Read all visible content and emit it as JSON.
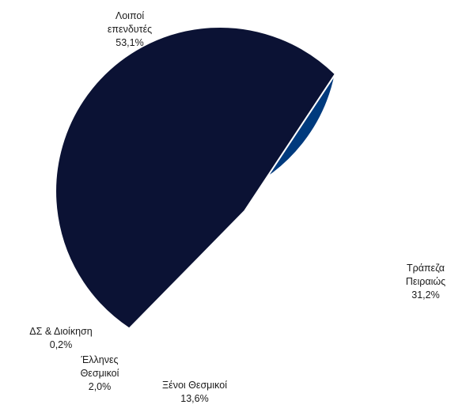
{
  "chart_data": {
    "type": "pie",
    "slices": [
      {
        "label_lines": [
          "Τράπεζα",
          "Πειραιώς"
        ],
        "value_label": "31,2%",
        "value": 31.2,
        "color": "#003a7d"
      },
      {
        "label_lines": [
          "Ξένοι Θεσμικοί"
        ],
        "value_label": "13,6%",
        "value": 13.6,
        "color": "#7bb52b"
      },
      {
        "label_lines": [
          "Έλληνες",
          "Θεσμικοί"
        ],
        "value_label": "2,0%",
        "value": 2.0,
        "color": "#9dc75a"
      },
      {
        "label_lines": [
          "ΔΣ & Διοίκηση"
        ],
        "value_label": "0,2%",
        "value": 0.2,
        "color": "#b5d48a"
      },
      {
        "label_lines": [
          "Λοιποί",
          "επενδυτές"
        ],
        "value_label": "53,1%",
        "value": 53.1,
        "color": "#0b1234"
      }
    ]
  }
}
